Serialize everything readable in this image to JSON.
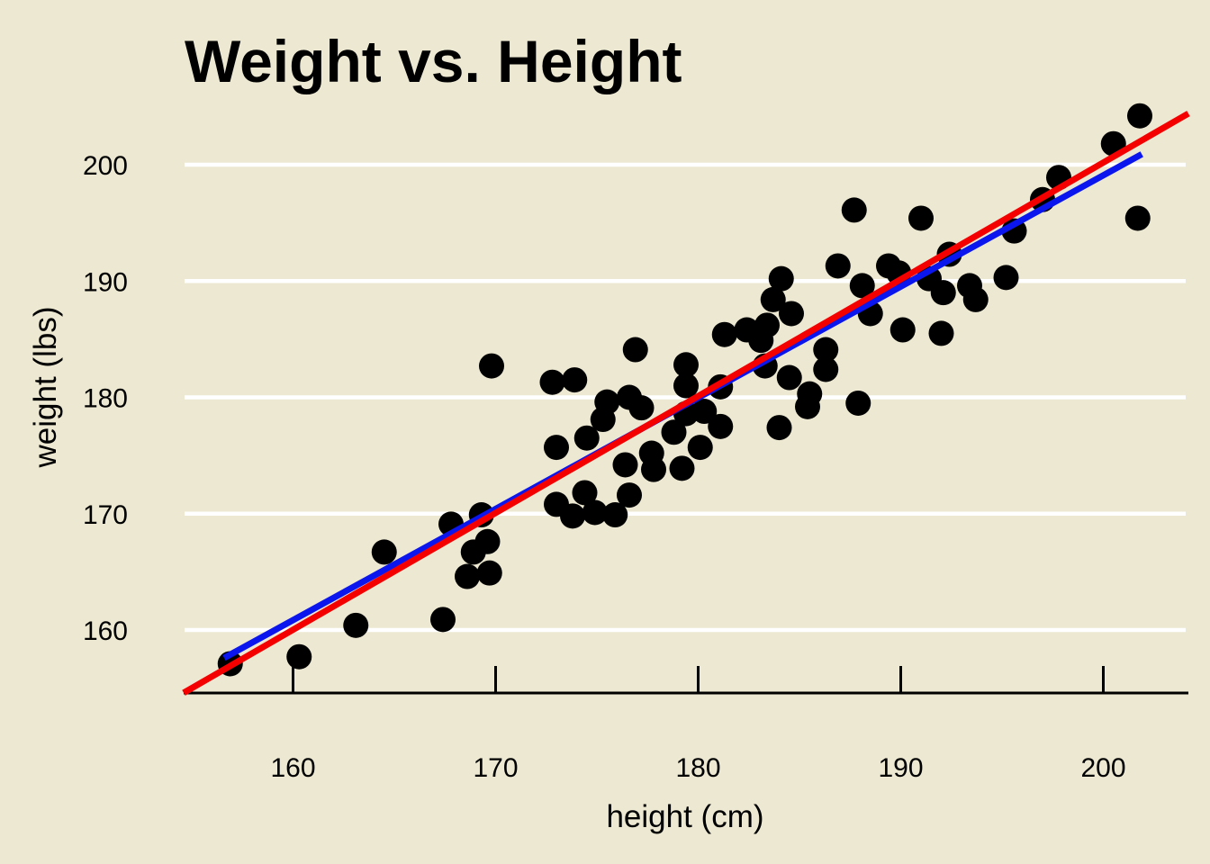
{
  "chart_data": {
    "type": "scatter",
    "title": "Weight vs. Height",
    "xlabel": "height (cm)",
    "ylabel": "weight (lbs)",
    "x_ticks": [
      160,
      170,
      180,
      190,
      200
    ],
    "y_ticks": [
      160,
      170,
      180,
      190,
      200
    ],
    "xlim": [
      154.6,
      204.3
    ],
    "ylim": [
      154.6,
      205.3
    ],
    "legend": "none",
    "grid": "horizontal-only",
    "colors": {
      "background": "#ECE8D2",
      "gridline": "#FFFFFF",
      "axis": "#000000",
      "points": "#000000",
      "red_line": "#F40000",
      "blue_line": "#0B16EE"
    },
    "points": [
      [
        156.9,
        157.1
      ],
      [
        160.3,
        157.7
      ],
      [
        163.1,
        160.4
      ],
      [
        164.5,
        166.7
      ],
      [
        167.4,
        160.9
      ],
      [
        167.8,
        169.1
      ],
      [
        169.3,
        169.9
      ],
      [
        169.6,
        167.6
      ],
      [
        168.9,
        166.7
      ],
      [
        168.6,
        164.6
      ],
      [
        169.7,
        164.9
      ],
      [
        169.8,
        182.7
      ],
      [
        173.0,
        170.8
      ],
      [
        173.8,
        169.8
      ],
      [
        174.4,
        171.8
      ],
      [
        174.9,
        170.1
      ],
      [
        175.9,
        169.9
      ],
      [
        176.6,
        171.6
      ],
      [
        173.0,
        175.7
      ],
      [
        174.5,
        176.5
      ],
      [
        175.3,
        178.1
      ],
      [
        176.4,
        174.2
      ],
      [
        177.7,
        175.2
      ],
      [
        177.8,
        173.8
      ],
      [
        178.8,
        177.0
      ],
      [
        179.2,
        173.9
      ],
      [
        180.1,
        175.7
      ],
      [
        181.1,
        177.5
      ],
      [
        184.0,
        177.4
      ],
      [
        185.4,
        179.2
      ],
      [
        187.9,
        179.5
      ],
      [
        172.8,
        181.3
      ],
      [
        173.9,
        181.5
      ],
      [
        175.5,
        179.6
      ],
      [
        176.6,
        180.0
      ],
      [
        177.2,
        179.1
      ],
      [
        176.9,
        184.1
      ],
      [
        179.4,
        182.8
      ],
      [
        179.4,
        181.0
      ],
      [
        179.4,
        178.6
      ],
      [
        180.3,
        178.8
      ],
      [
        181.1,
        180.9
      ],
      [
        181.3,
        185.4
      ],
      [
        182.4,
        185.8
      ],
      [
        183.1,
        184.9
      ],
      [
        183.3,
        182.7
      ],
      [
        184.5,
        181.7
      ],
      [
        183.4,
        186.2
      ],
      [
        184.6,
        187.2
      ],
      [
        183.7,
        188.4
      ],
      [
        184.1,
        190.2
      ],
      [
        185.5,
        180.3
      ],
      [
        186.3,
        182.4
      ],
      [
        186.3,
        184.1
      ],
      [
        187.7,
        196.1
      ],
      [
        186.9,
        191.3
      ],
      [
        188.1,
        189.6
      ],
      [
        189.4,
        191.3
      ],
      [
        189.9,
        190.7
      ],
      [
        191.0,
        195.4
      ],
      [
        191.4,
        190.2
      ],
      [
        192.1,
        189.0
      ],
      [
        192.4,
        192.3
      ],
      [
        188.5,
        187.2
      ],
      [
        190.1,
        185.8
      ],
      [
        192.0,
        185.5
      ],
      [
        193.4,
        189.6
      ],
      [
        193.7,
        188.4
      ],
      [
        195.2,
        190.3
      ],
      [
        195.6,
        194.3
      ],
      [
        197.0,
        197.0
      ],
      [
        197.8,
        198.9
      ],
      [
        200.5,
        201.8
      ],
      [
        201.8,
        204.2
      ],
      [
        201.7,
        195.4
      ]
    ],
    "lines": [
      {
        "name": "fit-line-blue",
        "color": "#0B16EE",
        "x1": 156.6,
        "y1": 157.6,
        "x2": 201.9,
        "y2": 200.9,
        "width": 7
      },
      {
        "name": "fit-line-red",
        "color": "#F40000",
        "x1": 154.6,
        "y1": 154.6,
        "x2": 204.2,
        "y2": 204.4,
        "width": 7
      }
    ]
  }
}
